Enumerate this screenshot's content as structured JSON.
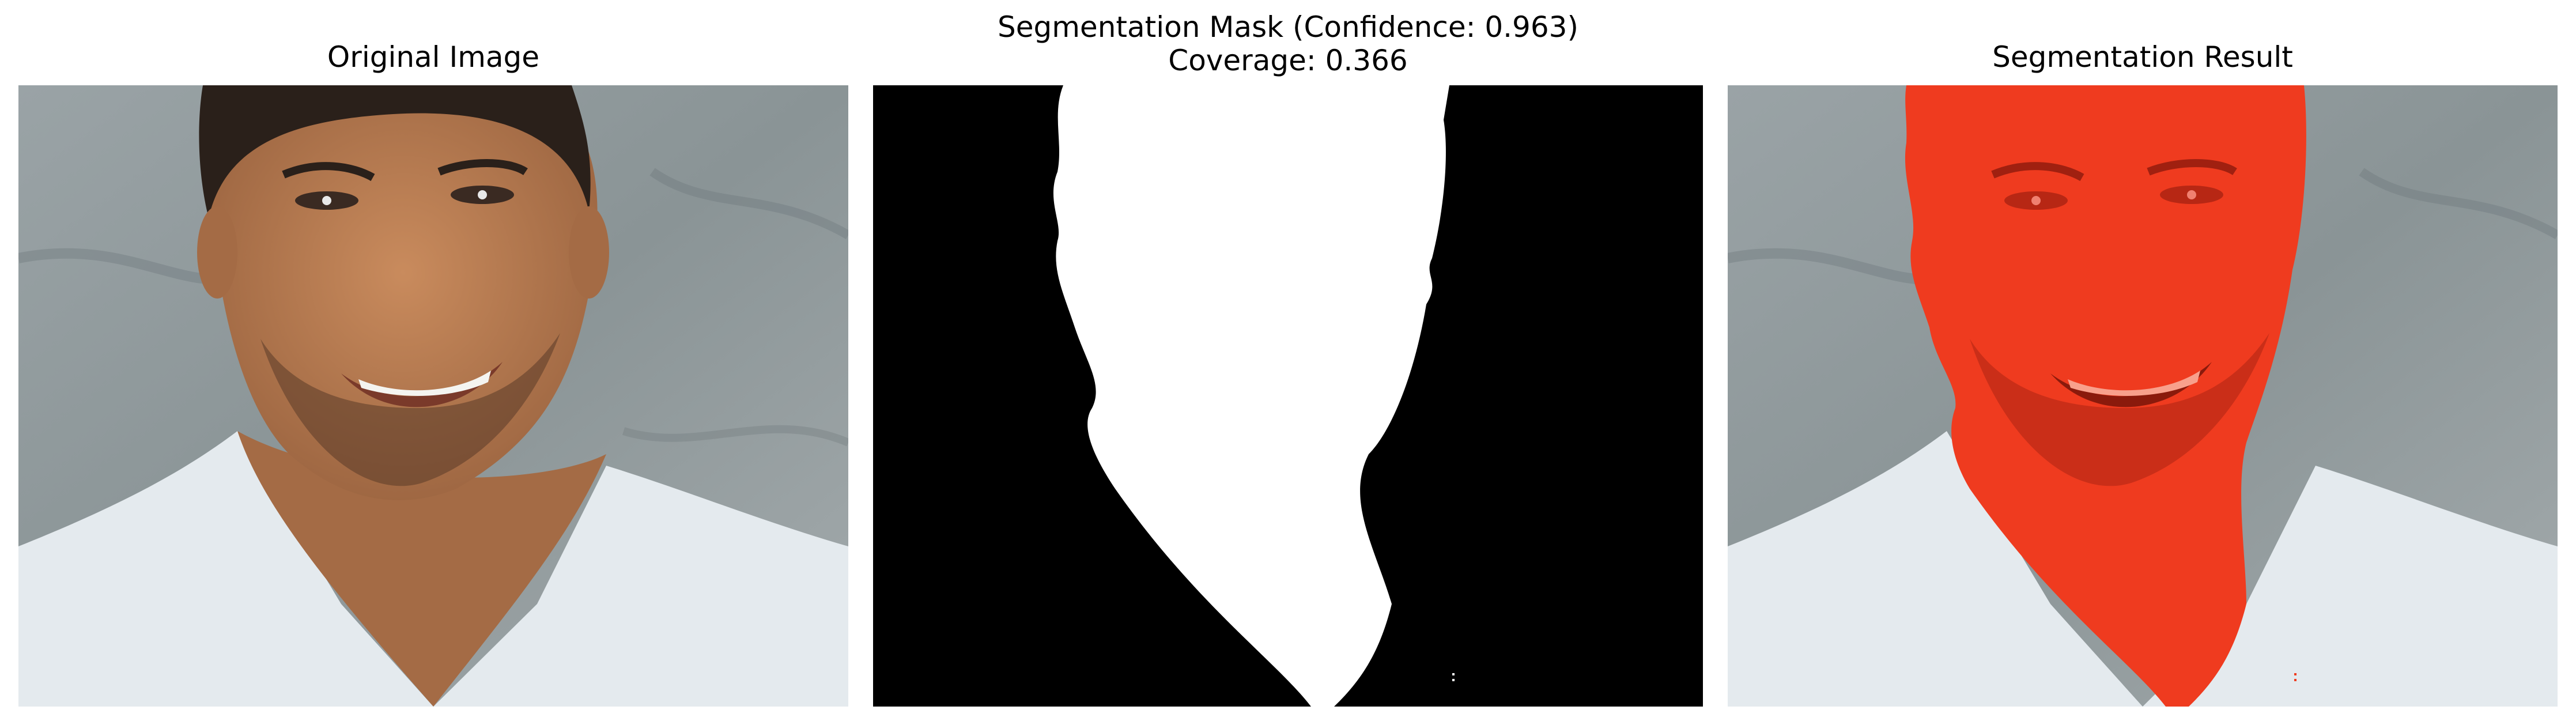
{
  "panels": [
    {
      "title": "Original Image"
    },
    {
      "title_line1": "Segmentation Mask (Confidence: 0.963)",
      "title_line2": "Coverage: 0.366"
    },
    {
      "title": "Segmentation Result"
    }
  ],
  "colors": {
    "background_wall": "#8f999c",
    "skin": "#b07a52",
    "hair": "#2a201a",
    "shirt": "#e6ecef",
    "mask_fg": "#ffffff",
    "mask_bg": "#000000",
    "overlay": "#ff2a10"
  },
  "mask": {
    "confidence": 0.963,
    "coverage": 0.366
  }
}
